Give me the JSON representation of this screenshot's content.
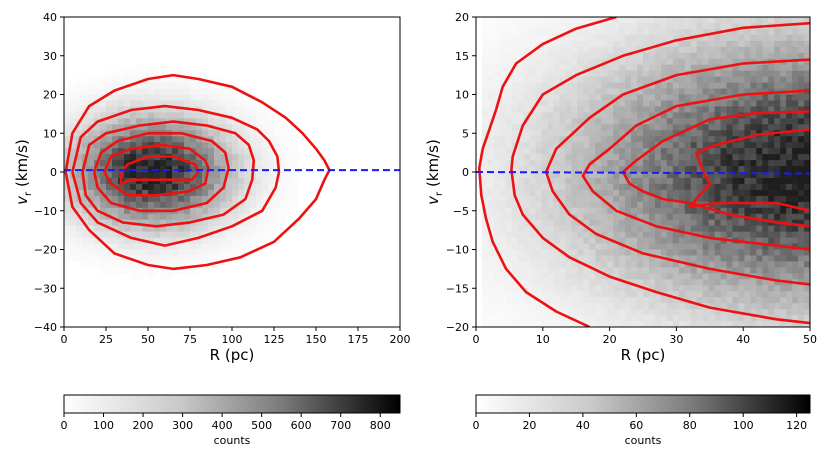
{
  "chart_data": [
    {
      "type": "heatmap",
      "title": "",
      "xlabel": "R (pc)",
      "ylabel_main": "v",
      "ylabel_sub": "r",
      "ylabel_units": " (km/s)",
      "xlim": [
        0,
        200
      ],
      "ylim": [
        -40,
        40
      ],
      "xticks": [
        0,
        25,
        50,
        75,
        100,
        125,
        150,
        175,
        200
      ],
      "yticks": [
        -40,
        -30,
        -20,
        -10,
        0,
        10,
        20,
        30,
        40
      ],
      "density_peak": {
        "R": 52,
        "vr": 0,
        "sigma_R": 30,
        "sigma_v": 9
      },
      "reference_line": {
        "vr": 0.5,
        "color": "#1a1aff",
        "style": "dashed"
      },
      "contour_color": "#ee1111",
      "contours": [
        [
          [
            1,
            0
          ],
          [
            5,
            10
          ],
          [
            15,
            17
          ],
          [
            30,
            21
          ],
          [
            50,
            24
          ],
          [
            65,
            25
          ],
          [
            80,
            24
          ],
          [
            100,
            22
          ],
          [
            118,
            18
          ],
          [
            132,
            14
          ],
          [
            142,
            10
          ],
          [
            150,
            6
          ],
          [
            155,
            3
          ],
          [
            158,
            0.5
          ],
          [
            155,
            -2
          ],
          [
            150,
            -7
          ],
          [
            140,
            -12
          ],
          [
            125,
            -18
          ],
          [
            105,
            -22
          ],
          [
            85,
            -24
          ],
          [
            65,
            -25
          ],
          [
            50,
            -24
          ],
          [
            30,
            -21
          ],
          [
            15,
            -15
          ],
          [
            5,
            -9
          ],
          [
            1,
            0
          ]
        ],
        [
          [
            5,
            0
          ],
          [
            10,
            9
          ],
          [
            20,
            13
          ],
          [
            40,
            16
          ],
          [
            60,
            17
          ],
          [
            80,
            16
          ],
          [
            100,
            14
          ],
          [
            115,
            11
          ],
          [
            122,
            8
          ],
          [
            127,
            4
          ],
          [
            128,
            0
          ],
          [
            126,
            -4
          ],
          [
            118,
            -10
          ],
          [
            100,
            -14
          ],
          [
            80,
            -17
          ],
          [
            60,
            -19
          ],
          [
            40,
            -17
          ],
          [
            20,
            -13
          ],
          [
            10,
            -8
          ],
          [
            5,
            0
          ]
        ],
        [
          [
            11,
            0
          ],
          [
            15,
            7
          ],
          [
            25,
            10
          ],
          [
            45,
            12
          ],
          [
            65,
            13
          ],
          [
            85,
            12
          ],
          [
            102,
            10
          ],
          [
            110,
            7
          ],
          [
            113,
            3
          ],
          [
            112,
            -2
          ],
          [
            108,
            -7
          ],
          [
            95,
            -11
          ],
          [
            75,
            -13
          ],
          [
            55,
            -14
          ],
          [
            35,
            -13
          ],
          [
            20,
            -10
          ],
          [
            13,
            -6
          ],
          [
            11,
            0
          ]
        ],
        [
          [
            18,
            0
          ],
          [
            22,
            5
          ],
          [
            32,
            8
          ],
          [
            50,
            10
          ],
          [
            70,
            10
          ],
          [
            88,
            8
          ],
          [
            96,
            5
          ],
          [
            98,
            1
          ],
          [
            95,
            -4
          ],
          [
            85,
            -8
          ],
          [
            65,
            -10
          ],
          [
            45,
            -10
          ],
          [
            28,
            -8
          ],
          [
            20,
            -4
          ],
          [
            18,
            0
          ]
        ],
        [
          [
            24,
            0
          ],
          [
            28,
            4
          ],
          [
            40,
            6
          ],
          [
            58,
            7
          ],
          [
            75,
            6
          ],
          [
            84,
            3
          ],
          [
            86,
            1
          ],
          [
            84,
            -3
          ],
          [
            74,
            -5
          ],
          [
            55,
            -6
          ],
          [
            38,
            -6
          ],
          [
            28,
            -3
          ],
          [
            24,
            0
          ]
        ],
        [
          [
            34,
            0
          ],
          [
            38,
            2
          ],
          [
            50,
            4
          ],
          [
            65,
            4
          ],
          [
            78,
            2
          ],
          [
            80,
            0
          ],
          [
            76,
            -2
          ],
          [
            60,
            -2
          ],
          [
            48,
            -2
          ],
          [
            40,
            -2
          ],
          [
            34,
            -3
          ],
          [
            34,
            0
          ]
        ]
      ],
      "colorbar": {
        "min": 0,
        "max": 850,
        "ticks": [
          0,
          100,
          200,
          300,
          400,
          500,
          600,
          700,
          800
        ],
        "label": "counts"
      }
    },
    {
      "type": "heatmap",
      "title": "",
      "xlabel": "R (pc)",
      "ylabel_main": "v",
      "ylabel_sub": "r",
      "ylabel_units": " (km/s)",
      "xlim": [
        0,
        50
      ],
      "ylim": [
        -20,
        20
      ],
      "xticks": [
        0,
        10,
        20,
        30,
        40,
        50
      ],
      "yticks": [
        -20,
        -15,
        -10,
        -5,
        0,
        5,
        10,
        15,
        20
      ],
      "density_peak": {
        "R": 50,
        "vr": 0,
        "sigma_R": 22,
        "sigma_v": 11
      },
      "reference_line": {
        "vr": 0,
        "color": "#1a1aff",
        "style": "dashed"
      },
      "contour_color": "#ee1111",
      "contours": [
        [
          [
            21,
            20
          ],
          [
            15,
            18.5
          ],
          [
            10,
            16.5
          ],
          [
            6,
            14
          ],
          [
            4,
            11
          ],
          [
            3,
            8
          ],
          [
            2,
            5.5
          ],
          [
            1,
            3
          ],
          [
            0.5,
            0.5
          ],
          [
            0.8,
            -3
          ],
          [
            1.5,
            -6
          ],
          [
            2.5,
            -9
          ],
          [
            4.5,
            -12.5
          ],
          [
            7.5,
            -15.5
          ],
          [
            12,
            -18
          ],
          [
            17,
            -20
          ]
        ],
        [
          [
            50,
            19.2
          ],
          [
            40,
            18.6
          ],
          [
            30,
            17
          ],
          [
            22,
            15
          ],
          [
            15,
            12.5
          ],
          [
            10,
            10
          ],
          [
            7,
            6
          ],
          [
            5.5,
            2
          ],
          [
            5.3,
            0.3
          ],
          [
            5.8,
            -3
          ],
          [
            7,
            -5.5
          ],
          [
            10,
            -8.5
          ],
          [
            14,
            -11
          ],
          [
            20,
            -13.5
          ],
          [
            27,
            -15.5
          ],
          [
            35,
            -17.5
          ],
          [
            45,
            -19
          ],
          [
            50,
            -19.5
          ]
        ],
        [
          [
            50,
            14.5
          ],
          [
            40,
            14
          ],
          [
            30,
            12.5
          ],
          [
            22,
            10
          ],
          [
            17,
            7
          ],
          [
            12,
            3
          ],
          [
            10.5,
            0
          ],
          [
            11.5,
            -2.5
          ],
          [
            14,
            -5.5
          ],
          [
            18,
            -8
          ],
          [
            25,
            -10.5
          ],
          [
            35,
            -12.5
          ],
          [
            45,
            -14
          ],
          [
            50,
            -14.5
          ]
        ],
        [
          [
            50,
            10.5
          ],
          [
            40,
            10
          ],
          [
            30,
            8.5
          ],
          [
            24,
            6
          ],
          [
            20,
            3
          ],
          [
            17,
            1
          ],
          [
            16,
            -0.5
          ],
          [
            17.5,
            -2.5
          ],
          [
            21,
            -5
          ],
          [
            27,
            -7
          ],
          [
            35,
            -8.5
          ],
          [
            45,
            -9.5
          ],
          [
            50,
            -10
          ]
        ],
        [
          [
            50,
            7.8
          ],
          [
            42,
            7.6
          ],
          [
            35,
            6.8
          ],
          [
            28,
            4
          ],
          [
            24,
            1.5
          ],
          [
            22,
            0
          ],
          [
            23,
            -1.5
          ],
          [
            25,
            -2.5
          ],
          [
            28,
            -3.5
          ],
          [
            32,
            -4
          ],
          [
            38,
            -5.5
          ],
          [
            45,
            -6.5
          ],
          [
            50,
            -7
          ]
        ],
        [
          [
            50,
            5.5
          ],
          [
            42,
            4.8
          ],
          [
            36,
            3.5
          ],
          [
            33,
            2.5
          ],
          [
            34,
            0
          ],
          [
            35,
            -1.5
          ],
          [
            33,
            -3.5
          ],
          [
            32,
            -4.5
          ],
          [
            36,
            -4
          ],
          [
            40,
            -4
          ],
          [
            45,
            -4
          ],
          [
            50,
            -5
          ]
        ]
      ],
      "colorbar": {
        "min": 0,
        "max": 125,
        "ticks": [
          0,
          20,
          40,
          60,
          80,
          100,
          120
        ],
        "label": "counts"
      }
    }
  ]
}
